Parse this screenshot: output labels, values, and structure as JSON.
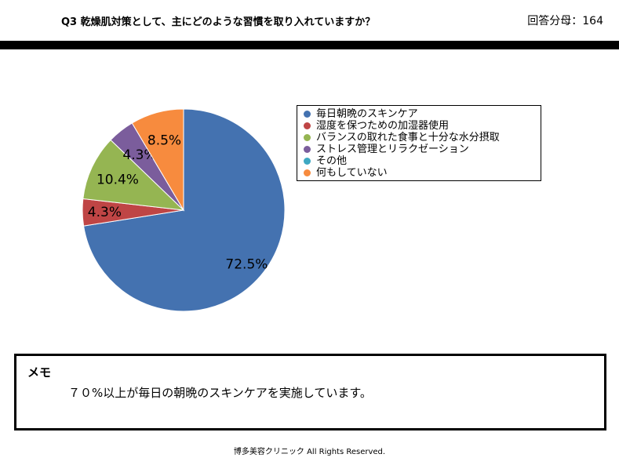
{
  "header": {
    "question": "Q3 乾燥肌対策として、主にどのような習慣を取り入れていますか？",
    "respondents": "回答分母：164"
  },
  "chart_data": {
    "type": "pie",
    "title": "",
    "legend_position": "right",
    "slices": [
      {
        "label": "毎日朝晩のスキンケア",
        "value": 72.5,
        "display": "72.5%",
        "color": "#4472b0"
      },
      {
        "label": "湿度を保つための加湿器使用",
        "value": 4.3,
        "display": "4.3%",
        "color": "#bf4545"
      },
      {
        "label": "バランスの取れた食事と十分な水分摂取",
        "value": 10.4,
        "display": "10.4%",
        "color": "#95b552"
      },
      {
        "label": "ストレス管理とリラクゼーション",
        "value": 4.3,
        "display": "4.3%",
        "color": "#7b5d9c"
      },
      {
        "label": "その他",
        "value": 0,
        "display": "",
        "color": "#3ea8c2"
      },
      {
        "label": "何もしていない",
        "value": 8.5,
        "display": "8.5%",
        "color": "#f78b3e"
      }
    ]
  },
  "memo": {
    "title": "メモ",
    "text": "７０%以上が毎日の朝晩のスキンケアを実施しています。"
  },
  "footer": {
    "copyright": "博多美容クリニック  All Rights Reserved."
  }
}
